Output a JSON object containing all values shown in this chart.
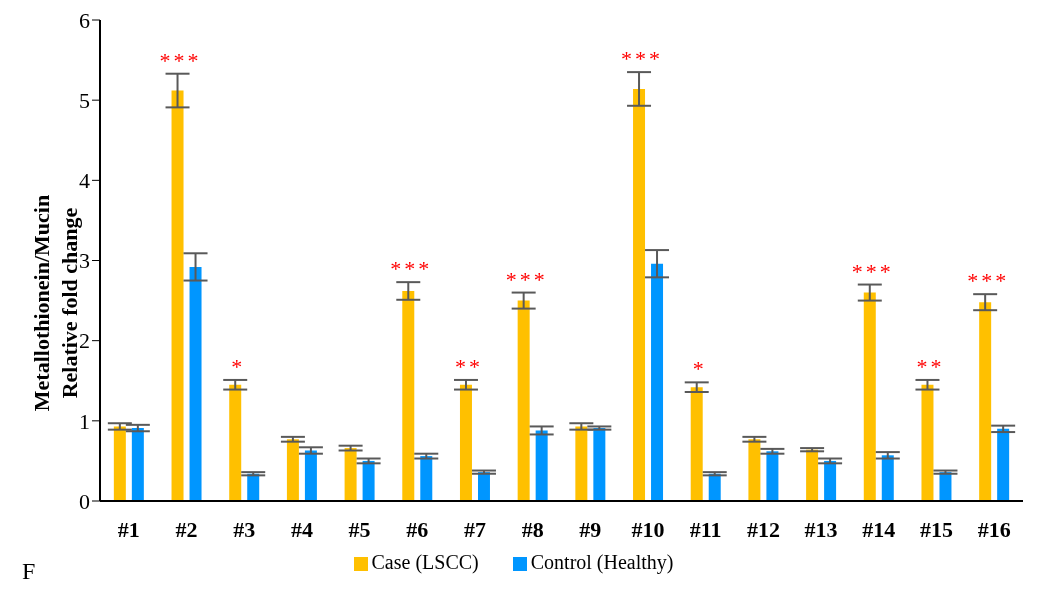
{
  "chart_data": {
    "type": "bar",
    "ylabel": "Metallothionein/Mucin\nRelative fold change",
    "categories": [
      "#1",
      "#2",
      "#3",
      "#4",
      "#5",
      "#6",
      "#7",
      "#8",
      "#9",
      "#10",
      "#11",
      "#12",
      "#13",
      "#14",
      "#15",
      "#16"
    ],
    "series": [
      {
        "name": "Case (LSCC)",
        "color": "#ffc000",
        "values": [
          0.93,
          5.12,
          1.45,
          0.77,
          0.66,
          2.62,
          1.45,
          2.5,
          0.93,
          5.14,
          1.42,
          0.77,
          0.64,
          2.6,
          1.45,
          2.48
        ],
        "errors": [
          0.04,
          0.21,
          0.06,
          0.03,
          0.03,
          0.11,
          0.06,
          0.1,
          0.04,
          0.21,
          0.06,
          0.03,
          0.02,
          0.1,
          0.06,
          0.1
        ]
      },
      {
        "name": "Control (Healthy)",
        "color": "#0096ff",
        "values": [
          0.91,
          2.92,
          0.34,
          0.63,
          0.5,
          0.56,
          0.36,
          0.88,
          0.91,
          2.96,
          0.34,
          0.62,
          0.5,
          0.57,
          0.36,
          0.9
        ],
        "errors": [
          0.04,
          0.17,
          0.02,
          0.04,
          0.03,
          0.03,
          0.02,
          0.05,
          0.02,
          0.17,
          0.02,
          0.03,
          0.03,
          0.04,
          0.02,
          0.04
        ]
      }
    ],
    "ylim": [
      0,
      6
    ],
    "yticks": [
      0,
      1,
      2,
      3,
      4,
      5,
      6
    ],
    "grid": false,
    "legend": "bottom",
    "annotations": [
      {
        "text": "***",
        "x": "#2",
        "y": 5.12
      },
      {
        "text": "*",
        "x": "#3",
        "y": 1.45
      },
      {
        "text": "***",
        "x": "#6",
        "y": 2.62
      },
      {
        "text": "**",
        "x": "#7",
        "y": 1.45
      },
      {
        "text": "***",
        "x": "#8",
        "y": 2.5
      },
      {
        "text": "***",
        "x": "#10",
        "y": 5.14
      },
      {
        "text": "*",
        "x": "#11",
        "y": 1.42
      },
      {
        "text": "***",
        "x": "#14",
        "y": 2.6
      },
      {
        "text": "**",
        "x": "#15",
        "y": 1.45
      },
      {
        "text": "***",
        "x": "#16",
        "y": 2.48
      },
      "F"
    ]
  }
}
